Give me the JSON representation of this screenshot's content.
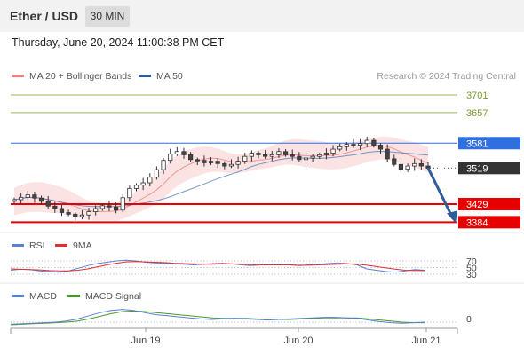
{
  "header": {
    "symbol": "Ether / USD",
    "timeframe": "30 MIN"
  },
  "datetime": "Thursday, June 20, 2024 11:00:38 PM CET",
  "legend": {
    "ma20": "MA 20 + Bollinger Bands",
    "ma50": "MA 50",
    "credit": "Research © 2024 Trading Central",
    "rsi": "RSI",
    "rsi_ma": "9MA",
    "macd": "MACD",
    "macd_signal": "MACD Signal"
  },
  "colors": {
    "ma20": "#f08080",
    "ma50": "#3a6fb0",
    "rsi": "#5b7fd4",
    "rsi_ma": "#e03030",
    "macd": "#5b7fd4",
    "macd_signal": "#4a9a2a",
    "resistance_green": "#7a9a2a",
    "pivot_blue": "#2f6fe0",
    "support_red": "#e60000",
    "last_price": "#333333"
  },
  "chart_data": [
    {
      "type": "candlestick",
      "panel": "price",
      "x_ticks": [
        "Jun 19",
        "Jun 20",
        "Jun 21"
      ],
      "price_levels": [
        {
          "value": 3701,
          "label": "3701",
          "kind": "resistance"
        },
        {
          "value": 3657,
          "label": "3657",
          "kind": "resistance"
        },
        {
          "value": 3581,
          "label": "3581",
          "kind": "pivot"
        },
        {
          "value": 3519,
          "label": "3519",
          "kind": "last"
        },
        {
          "value": 3429,
          "label": "3429",
          "kind": "support"
        },
        {
          "value": 3384,
          "label": "3384",
          "kind": "support"
        }
      ],
      "approx_close_path": [
        3440,
        3446,
        3452,
        3444,
        3436,
        3424,
        3418,
        3408,
        3404,
        3398,
        3402,
        3410,
        3418,
        3425,
        3422,
        3414,
        3445,
        3468,
        3476,
        3482,
        3496,
        3515,
        3538,
        3554,
        3560,
        3552,
        3540,
        3538,
        3532,
        3536,
        3530,
        3524,
        3528,
        3536,
        3548,
        3556,
        3552,
        3548,
        3552,
        3560,
        3552,
        3548,
        3540,
        3544,
        3548,
        3552,
        3556,
        3566,
        3572,
        3578,
        3576,
        3580,
        3588,
        3576,
        3566,
        3542,
        3528,
        3516,
        3524,
        3530,
        3524,
        3519
      ],
      "projection": {
        "from": 3519,
        "to": 3384
      }
    },
    {
      "type": "line",
      "panel": "rsi",
      "levels": [
        70,
        50,
        30
      ],
      "series": [
        {
          "name": "RSI",
          "values": [
            42,
            45,
            44,
            40,
            38,
            36,
            40,
            48,
            56,
            62,
            66,
            70,
            72,
            70,
            66,
            64,
            63,
            62,
            60,
            58,
            60,
            62,
            63,
            61,
            58,
            56,
            58,
            60,
            60,
            58,
            56,
            58,
            60,
            62,
            64,
            62,
            58,
            46,
            42,
            38,
            36,
            40,
            44,
            42
          ]
        },
        {
          "name": "9MA",
          "values": [
            46,
            45,
            44,
            43,
            41,
            40,
            40,
            42,
            46,
            52,
            58,
            63,
            67,
            68,
            67,
            66,
            65,
            63,
            62,
            61,
            60,
            60,
            61,
            61,
            60,
            59,
            58,
            58,
            58,
            58,
            57,
            57,
            58,
            59,
            60,
            61,
            60,
            57,
            53,
            49,
            45,
            42,
            41,
            41
          ]
        }
      ]
    },
    {
      "type": "line",
      "panel": "macd",
      "levels": [
        0
      ],
      "series": [
        {
          "name": "MACD",
          "values": [
            -4,
            -3,
            -2,
            -1,
            0,
            2,
            6,
            12,
            18,
            22,
            24,
            22,
            18,
            14,
            12,
            10,
            8,
            6,
            5,
            6,
            7,
            6,
            5,
            4,
            5,
            6,
            7,
            8,
            9,
            9,
            8,
            7,
            4,
            1,
            -1,
            -2,
            -1,
            0
          ]
        },
        {
          "name": "MACD Signal",
          "values": [
            -5,
            -4,
            -3,
            -2,
            -1,
            0,
            2,
            6,
            11,
            16,
            20,
            21,
            20,
            18,
            16,
            14,
            12,
            10,
            8,
            7,
            7,
            7,
            6,
            5,
            5,
            5,
            6,
            7,
            8,
            8,
            8,
            8,
            6,
            4,
            2,
            0,
            -1,
            -1
          ]
        }
      ]
    }
  ]
}
